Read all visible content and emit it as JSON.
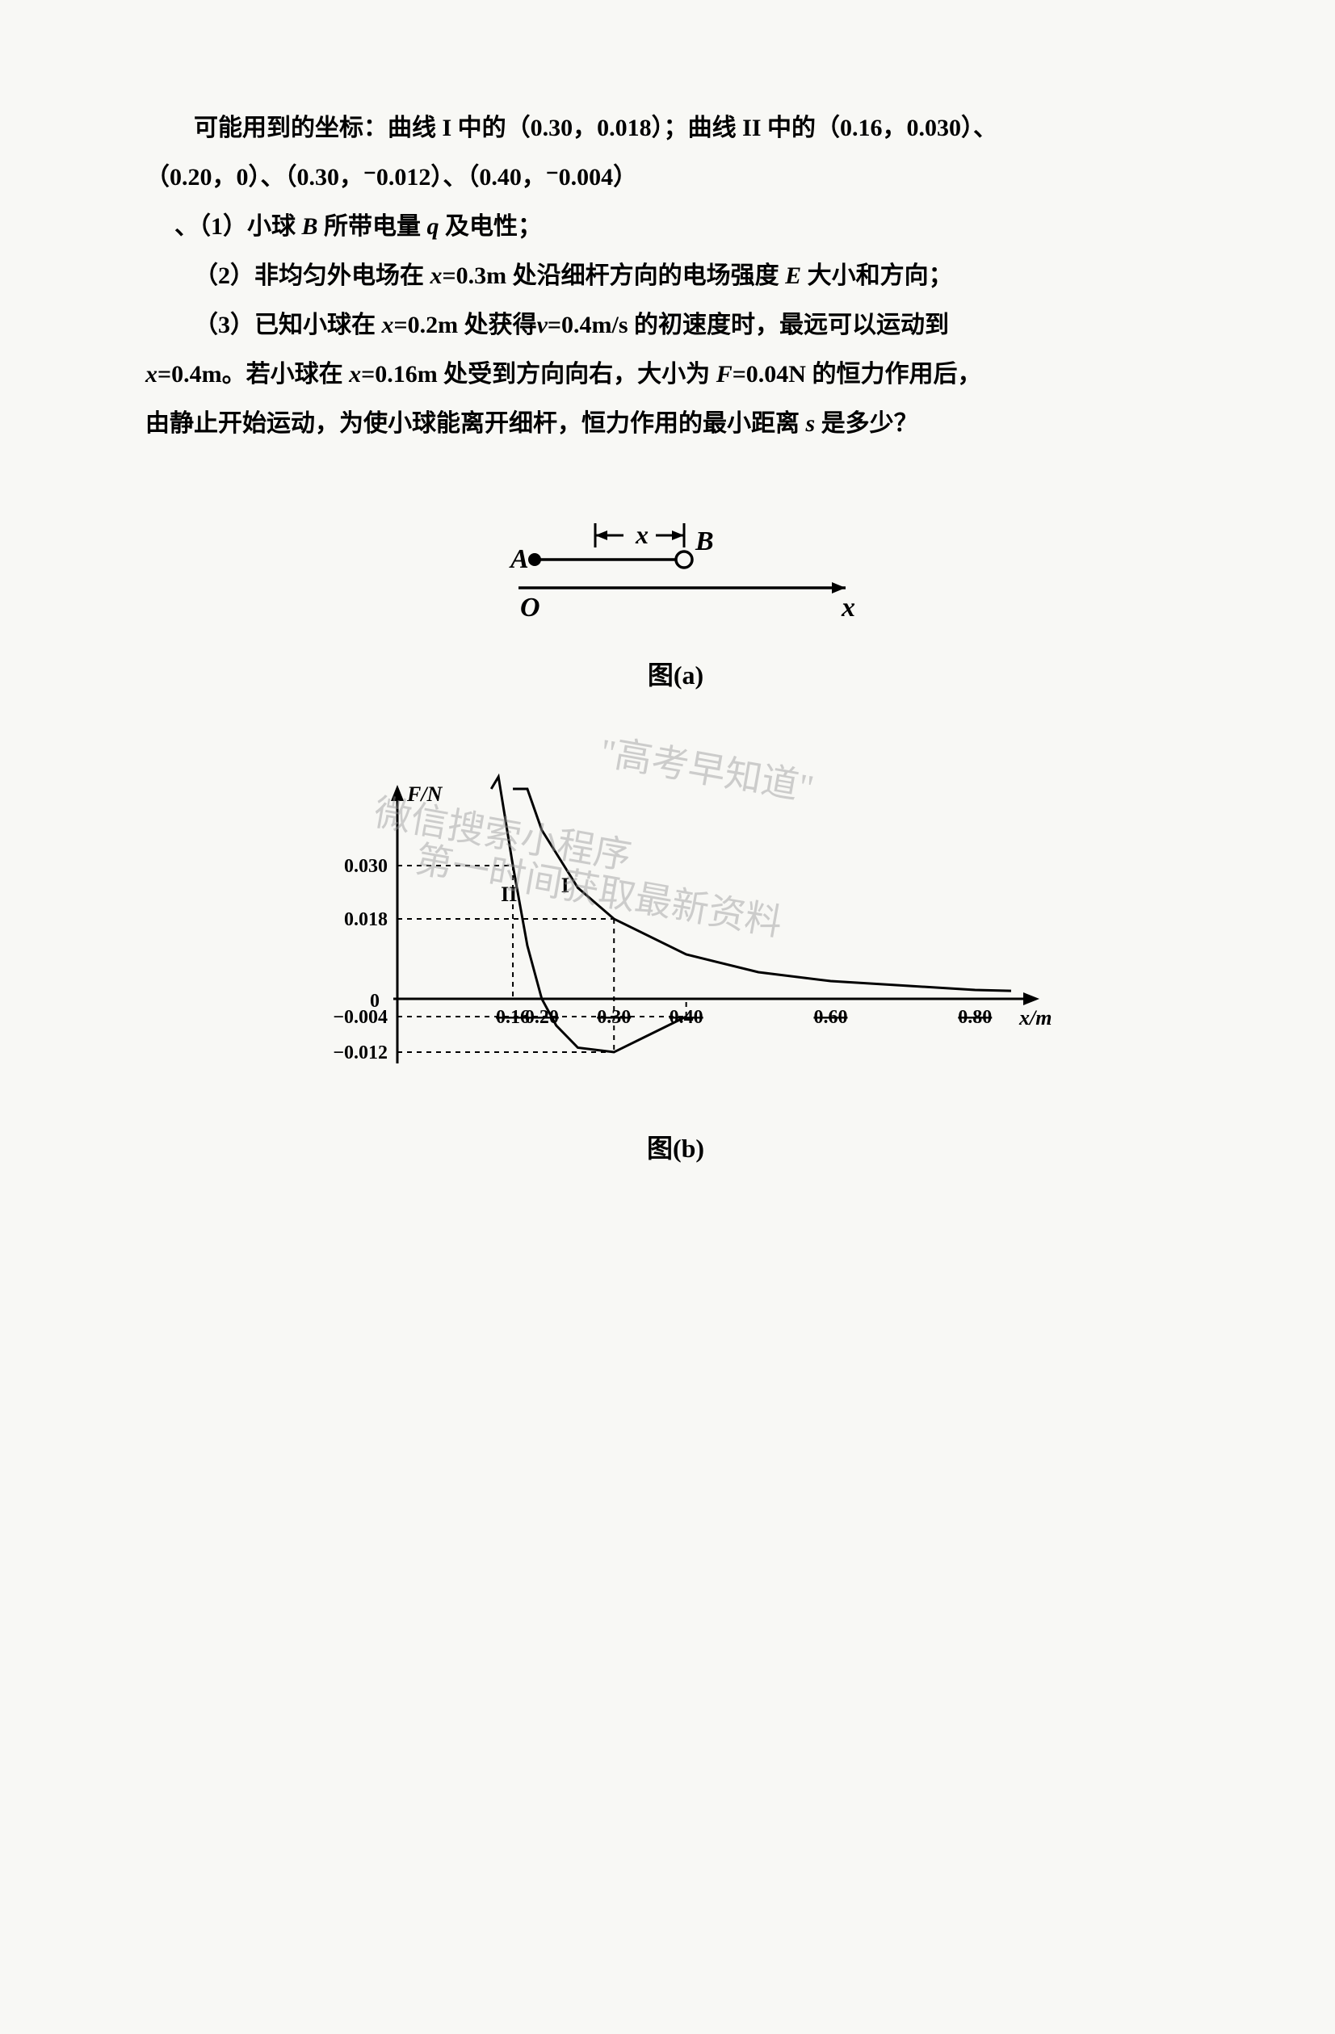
{
  "text": {
    "line1": "可能用到的坐标：曲线 I 中的（0.30，0.018）；曲线 II 中的（0.16，0.030）、",
    "line2": "（0.20，0）、（0.30，⁻0.012）、（0.40，⁻0.004）",
    "line3_prefix": "、（1）小球 ",
    "line3_B": "B",
    "line3_mid": " 所带电量 ",
    "line3_q": "q",
    "line3_suffix": " 及电性；",
    "line4_prefix": "（2）非均匀外电场在 ",
    "line4_x": "x",
    "line4_eq": "=0.3m 处沿细杆方向的电场强度 ",
    "line4_E": "E",
    "line4_suffix": " 大小和方向；",
    "line5_prefix": "（3）已知小球在 ",
    "line5_x1": "x",
    "line5_mid1": "=0.2m 处获得",
    "line5_v": "v",
    "line5_mid2": "=0.4m/s 的初速度时，最远可以运动到",
    "line6_x1": "x",
    "line6_mid1": "=0.4m。若小球在 ",
    "line6_x2": "x",
    "line6_mid2": "=0.16m 处受到方向向右，大小为 ",
    "line6_F": "F",
    "line6_suffix": "=0.04N 的恒力作用后，",
    "line7": "由静止开始运动，为使小球能离开细杆，恒力作用的最小距离 ",
    "line7_s": "s",
    "line7_suffix": " 是多少？"
  },
  "figure_a": {
    "label_A": "A",
    "label_B": "B",
    "label_O": "O",
    "label_x_dim": "x",
    "label_x_axis": "x",
    "caption": "图(a)",
    "colors": {
      "stroke": "#000000",
      "fill_A": "#000000",
      "fill_B": "#ffffff"
    },
    "line_width": 3.5,
    "font_size": 32
  },
  "figure_b": {
    "type": "line",
    "caption": "图(b)",
    "y_label": "F/N",
    "x_label": "x/m",
    "curve_labels": {
      "I": "I",
      "II": "II"
    },
    "y_ticks": [
      {
        "value": 0.03,
        "label": "0.030"
      },
      {
        "value": 0.018,
        "label": "0.018"
      },
      {
        "value": 0,
        "label": "0"
      },
      {
        "value": -0.004,
        "label": "−0.004"
      },
      {
        "value": -0.012,
        "label": "−0.012"
      }
    ],
    "x_ticks": [
      {
        "value": 0.16,
        "label": "0.16"
      },
      {
        "value": 0.2,
        "label": "0.20"
      },
      {
        "value": 0.3,
        "label": "0.30"
      },
      {
        "value": 0.4,
        "label": "0.40"
      },
      {
        "value": 0.6,
        "label": "0.60"
      },
      {
        "value": 0.8,
        "label": "0.80"
      }
    ],
    "xlim": [
      0,
      0.9
    ],
    "ylim": [
      -0.015,
      0.04
    ],
    "curve_I_points": [
      {
        "x": 0.16,
        "y": 0.07
      },
      {
        "x": 0.18,
        "y": 0.05
      },
      {
        "x": 0.2,
        "y": 0.038
      },
      {
        "x": 0.25,
        "y": 0.025
      },
      {
        "x": 0.3,
        "y": 0.018
      },
      {
        "x": 0.4,
        "y": 0.01
      },
      {
        "x": 0.5,
        "y": 0.006
      },
      {
        "x": 0.6,
        "y": 0.004
      },
      {
        "x": 0.7,
        "y": 0.003
      },
      {
        "x": 0.8,
        "y": 0.002
      },
      {
        "x": 0.85,
        "y": 0.0018
      }
    ],
    "curve_II_points": [
      {
        "x": 0.13,
        "y": 0.07
      },
      {
        "x": 0.14,
        "y": 0.05
      },
      {
        "x": 0.16,
        "y": 0.03
      },
      {
        "x": 0.18,
        "y": 0.012
      },
      {
        "x": 0.2,
        "y": 0.0
      },
      {
        "x": 0.22,
        "y": -0.006
      },
      {
        "x": 0.25,
        "y": -0.011
      },
      {
        "x": 0.3,
        "y": -0.012
      },
      {
        "x": 0.35,
        "y": -0.008
      },
      {
        "x": 0.4,
        "y": -0.004
      }
    ],
    "colors": {
      "axis": "#000000",
      "curve": "#000000",
      "dashed": "#000000",
      "background": "#f8f8f5"
    },
    "line_width_axis": 3,
    "line_width_curve": 3,
    "line_width_dashed": 2,
    "font_size_label": 26,
    "font_size_tick": 24
  },
  "watermarks": {
    "w1": "\"高考早知道\"",
    "w2": "微信搜索小程序",
    "w3": "第一时间获取最新资料"
  }
}
